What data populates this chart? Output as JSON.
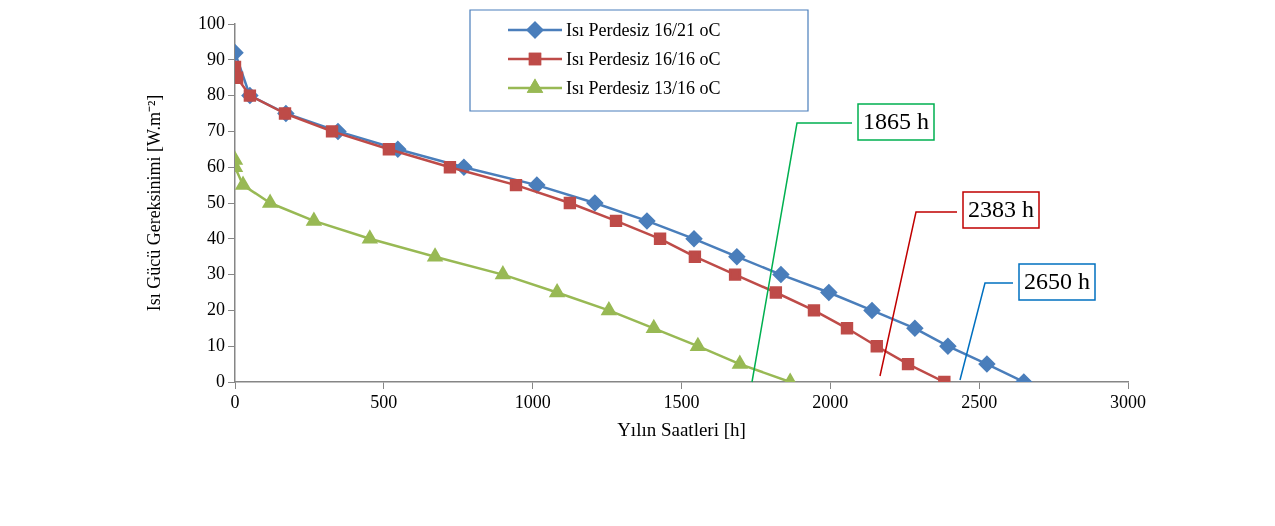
{
  "chart_data": {
    "type": "line",
    "xlabel": "Yılın Saatleri [h]",
    "ylabel": "Isı Gücü Gereksinimi [W.m⁻²]",
    "xlim": [
      0,
      3000
    ],
    "xticks": [
      0,
      500,
      1000,
      1500,
      2000,
      2500,
      3000
    ],
    "ylim": [
      0,
      100
    ],
    "yticks": [
      0,
      10,
      20,
      30,
      40,
      50,
      60,
      70,
      80,
      90,
      100
    ],
    "grid": false,
    "legend": "top",
    "line_style": "solid",
    "series": [
      {
        "name": "Isı Perdesiz 16/21 oC",
        "color": "#4a7ebb",
        "marker": "diamond",
        "x": [
          0,
          50,
          171,
          346,
          547,
          769,
          1014,
          1209,
          1384,
          1542,
          1686,
          1834,
          1995,
          2140,
          2284,
          2395,
          2526,
          2650
        ],
        "values": [
          92,
          80,
          75,
          70,
          65,
          60,
          55,
          50,
          45,
          40,
          35,
          30,
          25,
          20,
          15,
          10,
          5,
          0
        ]
      },
      {
        "name": "Isı Perdesiz 16/16 oC",
        "color": "#be4b48",
        "marker": "square",
        "x": [
          0,
          7,
          50,
          168,
          326,
          517,
          722,
          944,
          1125,
          1280,
          1428,
          1545,
          1680,
          1817,
          1945,
          2056,
          2156,
          2261,
          2383
        ],
        "values": [
          88,
          85,
          80,
          75,
          70,
          65,
          60,
          55,
          50,
          45,
          40,
          35,
          30,
          25,
          20,
          15,
          10,
          5,
          0
        ]
      },
      {
        "name": "Isı Perdesiz 13/16 oC",
        "color": "#98b954",
        "marker": "triangle",
        "x": [
          0,
          0,
          27,
          118,
          265,
          453,
          672,
          900,
          1082,
          1256,
          1407,
          1555,
          1696,
          1865
        ],
        "values": [
          62,
          60,
          55,
          50,
          45,
          40,
          35,
          30,
          25,
          20,
          15,
          10,
          5,
          0
        ]
      }
    ],
    "annotations": [
      "1865 h",
      "2383 h",
      "2650 h"
    ]
  }
}
